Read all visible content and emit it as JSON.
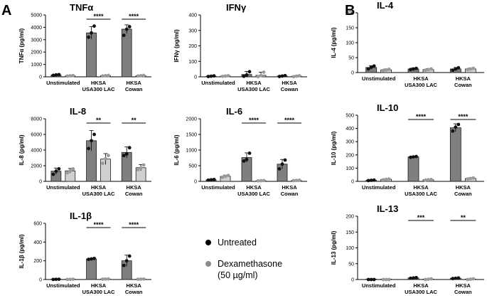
{
  "panel_labels": [
    "A",
    "B"
  ],
  "legend": {
    "untreated": "Untreated",
    "dex_line1": "Dexamethasone",
    "dex_line2": "(50 µg/ml)",
    "colors": {
      "untreated_dot": "#000000",
      "dex_dot": "#8c8c8c"
    }
  },
  "colors": {
    "untreated_bar": "#7f7f7f",
    "dex_bar": "#d0d0d0",
    "edge": "#1a1a1a",
    "untreated_point": "#111111",
    "dex_point": "#9a9a9a"
  },
  "chart_data": [
    {
      "type": "bar",
      "panel": "A",
      "title": "TNFα",
      "ylabel": "TNFα (pg/ml)",
      "ylim": [
        0,
        5000
      ],
      "ticks": [
        0,
        1000,
        2000,
        3000,
        4000,
        5000
      ],
      "categories": [
        [
          "Unstimulated"
        ],
        [
          "HKSA",
          "USA300 LAC"
        ],
        [
          "HKSA",
          "Cowan"
        ]
      ],
      "series": [
        {
          "name": "Untreated",
          "values": [
            150,
            3550,
            3850
          ],
          "err": [
            40,
            500,
            350
          ],
          "points": [
            [
              120,
              160,
              180
            ],
            [
              3200,
              3550,
              4100
            ],
            [
              3350,
              3850,
              4050
            ]
          ]
        },
        {
          "name": "Dexamethasone (50 µg/ml)",
          "values": [
            80,
            90,
            90
          ],
          "err": [
            30,
            30,
            30
          ],
          "points": [
            [
              60,
              80,
              100
            ],
            [
              70,
              90,
              110
            ],
            [
              70,
              90,
              110
            ]
          ]
        }
      ],
      "significance": [
        {
          "group": 1,
          "label": "****"
        },
        {
          "group": 2,
          "label": "****"
        }
      ]
    },
    {
      "type": "bar",
      "panel": "A",
      "title": "IFNγ",
      "ylabel": "IFNγ (pg/ml)",
      "ylim": [
        0,
        400
      ],
      "ticks": [
        0,
        100,
        200,
        300,
        400
      ],
      "categories": [
        [
          "Unstimulated"
        ],
        [
          "HKSA",
          "USA300 LAC"
        ],
        [
          "HKSA",
          "Cowan"
        ]
      ],
      "series": [
        {
          "name": "Untreated",
          "values": [
            4,
            15,
            5
          ],
          "err": [
            3,
            20,
            4
          ],
          "points": [
            [
              2,
              4,
              6
            ],
            [
              3,
              12,
              33
            ],
            [
              2,
              5,
              8
            ]
          ]
        },
        {
          "name": "Dexamethasone (50 µg/ml)",
          "values": [
            5,
            10,
            4
          ],
          "err": [
            3,
            20,
            4
          ],
          "points": [
            [
              3,
              5,
              7
            ],
            [
              1,
              8,
              30
            ],
            [
              1,
              4,
              7
            ]
          ]
        }
      ],
      "significance": []
    },
    {
      "type": "bar",
      "panel": "B",
      "title": "IL-4",
      "ylabel": "IL-4 (pg/ml)",
      "ylim": [
        0,
        200
      ],
      "ticks": [
        0,
        50,
        100,
        150,
        200
      ],
      "categories": [
        [
          "Unstimulated"
        ],
        [
          "HKSA",
          "USA300 LAC"
        ],
        [
          "HKSA",
          "Cowan"
        ]
      ],
      "series": [
        {
          "name": "Untreated",
          "values": [
            17,
            12,
            12
          ],
          "err": [
            6,
            3,
            5
          ],
          "points": [
            [
              12,
              18,
              22
            ],
            [
              10,
              12,
              14
            ],
            [
              8,
              12,
              16
            ]
          ]
        },
        {
          "name": "Dexamethasone (50 µg/ml)",
          "values": [
            9,
            10,
            12
          ],
          "err": [
            3,
            3,
            3
          ],
          "points": [
            [
              7,
              9,
              11
            ],
            [
              8,
              10,
              12
            ],
            [
              10,
              12,
              14
            ]
          ]
        }
      ],
      "significance": []
    },
    {
      "type": "bar",
      "panel": "A",
      "title": "IL-8",
      "ylabel": "IL-8 (pg/ml)",
      "ylim": [
        0,
        8000
      ],
      "ticks": [
        0,
        2000,
        4000,
        6000,
        8000
      ],
      "categories": [
        [
          "Unstimulated"
        ],
        [
          "HKSA",
          "USA300 LAC"
        ],
        [
          "HKSA",
          "Cowan"
        ]
      ],
      "series": [
        {
          "name": "Untreated",
          "values": [
            1300,
            5200,
            3700
          ],
          "err": [
            400,
            1300,
            700
          ],
          "points": [
            [
              900,
              1300,
              1600
            ],
            [
              4200,
              5200,
              6000
            ],
            [
              3300,
              3500,
              4300
            ]
          ]
        },
        {
          "name": "Dexamethasone (50 µg/ml)",
          "values": [
            1350,
            2850,
            1750
          ],
          "err": [
            300,
            700,
            400
          ],
          "points": [
            [
              1100,
              1350,
              1600
            ],
            [
              2300,
              2900,
              3300
            ],
            [
              1500,
              1700,
              2100
            ]
          ]
        }
      ],
      "significance": [
        {
          "group": 1,
          "label": "**"
        },
        {
          "group": 2,
          "label": "**"
        }
      ]
    },
    {
      "type": "bar",
      "panel": "A",
      "title": "IL-6",
      "ylabel": "IL-6 (pg/ml)",
      "ylim": [
        0,
        2000
      ],
      "ticks": [
        0,
        500,
        1000,
        1500,
        2000
      ],
      "categories": [
        [
          "Unstimulated"
        ],
        [
          "HKSA",
          "USA300 LAC"
        ],
        [
          "HKSA",
          "Cowan"
        ]
      ],
      "series": [
        {
          "name": "Untreated",
          "values": [
            50,
            760,
            550
          ],
          "err": [
            15,
            150,
            150
          ],
          "points": [
            [
              40,
              50,
              60
            ],
            [
              650,
              700,
              900
            ],
            [
              400,
              550,
              680
            ]
          ]
        },
        {
          "name": "Dexamethasone (50 µg/ml)",
          "values": [
            160,
            20,
            30
          ],
          "err": [
            40,
            10,
            10
          ],
          "points": [
            [
              130,
              160,
              190
            ],
            [
              15,
              20,
              25
            ],
            [
              25,
              30,
              35
            ]
          ]
        }
      ],
      "significance": [
        {
          "group": 1,
          "label": "****"
        },
        {
          "group": 2,
          "label": "****"
        }
      ]
    },
    {
      "type": "bar",
      "panel": "B",
      "title": "IL-10",
      "ylabel": "IL-10 (pg/ml)",
      "ylim": [
        0,
        500
      ],
      "ticks": [
        0,
        100,
        200,
        300,
        400,
        500
      ],
      "categories": [
        [
          "Unstimulated"
        ],
        [
          "HKSA",
          "USA300 LAC"
        ],
        [
          "HKSA",
          "Cowan"
        ]
      ],
      "series": [
        {
          "name": "Untreated",
          "values": [
            8,
            185,
            405
          ],
          "err": [
            3,
            5,
            30
          ],
          "points": [
            [
              6,
              8,
              10
            ],
            [
              182,
              185,
              188
            ],
            [
              380,
              410,
              430
            ]
          ]
        },
        {
          "name": "Dexamethasone (50 µg/ml)",
          "values": [
            15,
            12,
            22
          ],
          "err": [
            3,
            3,
            5
          ],
          "points": [
            [
              12,
              15,
              18
            ],
            [
              10,
              12,
              14
            ],
            [
              18,
              22,
              26
            ]
          ]
        }
      ],
      "significance": [
        {
          "group": 1,
          "label": "****"
        },
        {
          "group": 2,
          "label": "****"
        }
      ]
    },
    {
      "type": "bar",
      "panel": "A",
      "title": "IL-1β",
      "ylabel": "IL-1β (pg/ml)",
      "ylim": [
        0,
        600
      ],
      "ticks": [
        0,
        200,
        400,
        600
      ],
      "categories": [
        [
          "Unstimulated"
        ],
        [
          "HKSA",
          "USA300 LAC"
        ],
        [
          "HKSA",
          "Cowan"
        ]
      ],
      "series": [
        {
          "name": "Untreated",
          "values": [
            2,
            220,
            200
          ],
          "err": [
            1,
            5,
            60
          ],
          "points": [
            [
              1,
              2,
              3
            ],
            [
              215,
              220,
              225
            ],
            [
              150,
              200,
              250
            ]
          ]
        },
        {
          "name": "Dexamethasone (50 µg/ml)",
          "values": [
            2,
            5,
            4
          ],
          "err": [
            1,
            2,
            2
          ],
          "points": [
            [
              1,
              2,
              3
            ],
            [
              4,
              5,
              6
            ],
            [
              3,
              4,
              5
            ]
          ]
        }
      ],
      "significance": [
        {
          "group": 1,
          "label": "****"
        },
        {
          "group": 2,
          "label": "****"
        }
      ]
    },
    {
      "type": "bar",
      "panel": "B",
      "title": "IL-13",
      "ylabel": "IL-13 (pg/ml)",
      "ylim": [
        0,
        200
      ],
      "ticks": [
        0,
        50,
        100,
        150,
        200
      ],
      "categories": [
        [
          "Unstimulated"
        ],
        [
          "HKSA",
          "USA300 LAC"
        ],
        [
          "HKSA",
          "Cowan"
        ]
      ],
      "series": [
        {
          "name": "Untreated",
          "values": [
            0,
            5,
            4
          ],
          "err": [
            0,
            1,
            1
          ],
          "points": [
            [
              0,
              0,
              0
            ],
            [
              4,
              5,
              6
            ],
            [
              3,
              4,
              5
            ]
          ]
        },
        {
          "name": "Dexamethasone (50 µg/ml)",
          "values": [
            0,
            1,
            1
          ],
          "err": [
            0,
            1,
            1
          ],
          "points": [
            [
              0,
              0,
              0
            ],
            [
              0,
              1,
              2
            ],
            [
              0,
              1,
              2
            ]
          ]
        }
      ],
      "significance": [
        {
          "group": 1,
          "label": "***"
        },
        {
          "group": 2,
          "label": "**"
        }
      ]
    }
  ]
}
